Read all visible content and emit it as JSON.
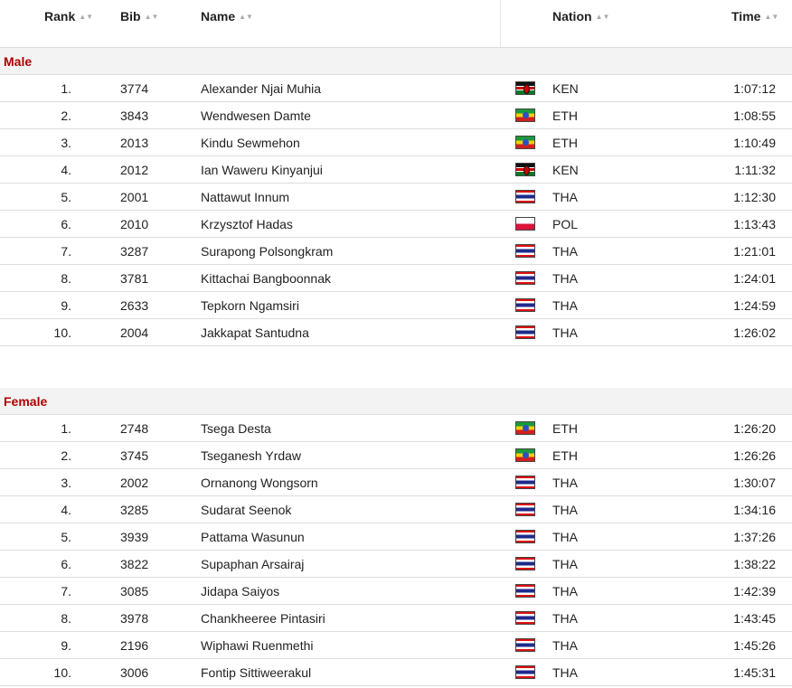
{
  "columns": {
    "rank": "Rank",
    "bib": "Bib",
    "name": "Name",
    "nation": "Nation",
    "time": "Time"
  },
  "sort_icon": "sort-icon",
  "sections": [
    {
      "label": "Male",
      "rows": [
        {
          "rank": "1.",
          "bib": "3774",
          "name": "Alexander Njai Muhia",
          "nation": "KEN",
          "time": "1:07:12"
        },
        {
          "rank": "2.",
          "bib": "3843",
          "name": "Wendwesen Damte",
          "nation": "ETH",
          "time": "1:08:55"
        },
        {
          "rank": "3.",
          "bib": "2013",
          "name": "Kindu Sewmehon",
          "nation": "ETH",
          "time": "1:10:49"
        },
        {
          "rank": "4.",
          "bib": "2012",
          "name": "Ian Waweru Kinyanjui",
          "nation": "KEN",
          "time": "1:11:32"
        },
        {
          "rank": "5.",
          "bib": "2001",
          "name": "Nattawut Innum",
          "nation": "THA",
          "time": "1:12:30"
        },
        {
          "rank": "6.",
          "bib": "2010",
          "name": "Krzysztof Hadas",
          "nation": "POL",
          "time": "1:13:43"
        },
        {
          "rank": "7.",
          "bib": "3287",
          "name": "Surapong Polsongkram",
          "nation": "THA",
          "time": "1:21:01"
        },
        {
          "rank": "8.",
          "bib": "3781",
          "name": "Kittachai Bangboonnak",
          "nation": "THA",
          "time": "1:24:01"
        },
        {
          "rank": "9.",
          "bib": "2633",
          "name": "Tepkorn Ngamsiri",
          "nation": "THA",
          "time": "1:24:59"
        },
        {
          "rank": "10.",
          "bib": "2004",
          "name": "Jakkapat Santudna",
          "nation": "THA",
          "time": "1:26:02"
        }
      ]
    },
    {
      "label": "Female",
      "rows": [
        {
          "rank": "1.",
          "bib": "2748",
          "name": "Tsega Desta",
          "nation": "ETH",
          "time": "1:26:20"
        },
        {
          "rank": "2.",
          "bib": "3745",
          "name": "Tseganesh Yrdaw",
          "nation": "ETH",
          "time": "1:26:26"
        },
        {
          "rank": "3.",
          "bib": "2002",
          "name": "Ornanong Wongsorn",
          "nation": "THA",
          "time": "1:30:07"
        },
        {
          "rank": "4.",
          "bib": "3285",
          "name": "Sudarat Seenok",
          "nation": "THA",
          "time": "1:34:16"
        },
        {
          "rank": "5.",
          "bib": "3939",
          "name": "Pattama Wasunun",
          "nation": "THA",
          "time": "1:37:26"
        },
        {
          "rank": "6.",
          "bib": "3822",
          "name": "Supaphan Arsairaj",
          "nation": "THA",
          "time": "1:38:22"
        },
        {
          "rank": "7.",
          "bib": "3085",
          "name": "Jidapa Saiyos",
          "nation": "THA",
          "time": "1:42:39"
        },
        {
          "rank": "8.",
          "bib": "3978",
          "name": "Chankheeree Pintasiri",
          "nation": "THA",
          "time": "1:43:45"
        },
        {
          "rank": "9.",
          "bib": "2196",
          "name": "Wiphawi Ruenmethi",
          "nation": "THA",
          "time": "1:45:26"
        },
        {
          "rank": "10.",
          "bib": "3006",
          "name": "Fontip Sittiweerakul",
          "nation": "THA",
          "time": "1:45:31"
        }
      ]
    }
  ],
  "colors": {
    "section_label": "#b00000",
    "section_bg": "#f3f3f3",
    "row_border": "#dddddd"
  }
}
